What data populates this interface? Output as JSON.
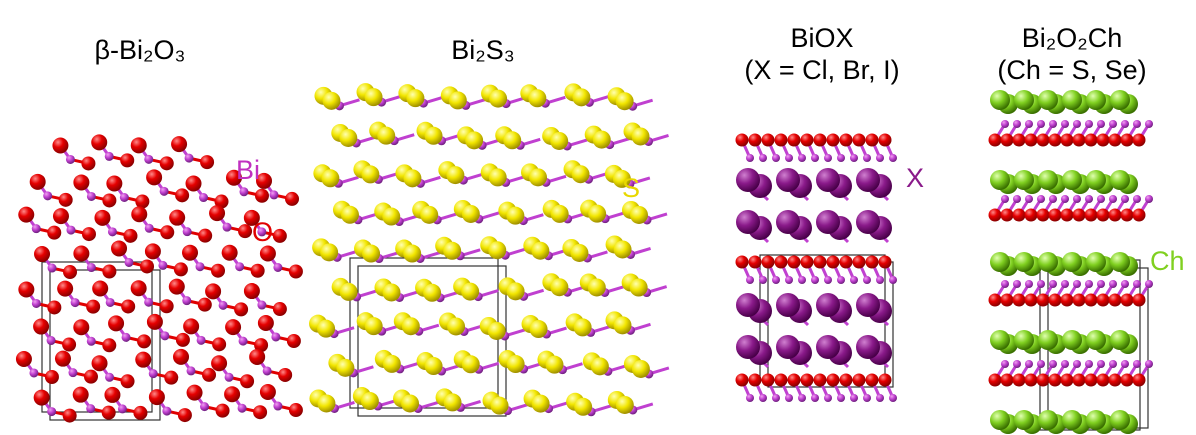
{
  "panels": [
    {
      "title": "β-Bi₂O₃",
      "labels": [
        "Bi",
        "O"
      ]
    },
    {
      "title": "Bi₂S₃",
      "labels": [
        "S"
      ]
    },
    {
      "title": "BiOX",
      "subtitle": "(X = Cl, Br, I)",
      "labels": [
        "X"
      ]
    },
    {
      "title": "Bi₂O₂Ch",
      "subtitle": "(Ch = S, Se)",
      "labels": [
        "Ch"
      ]
    }
  ]
}
